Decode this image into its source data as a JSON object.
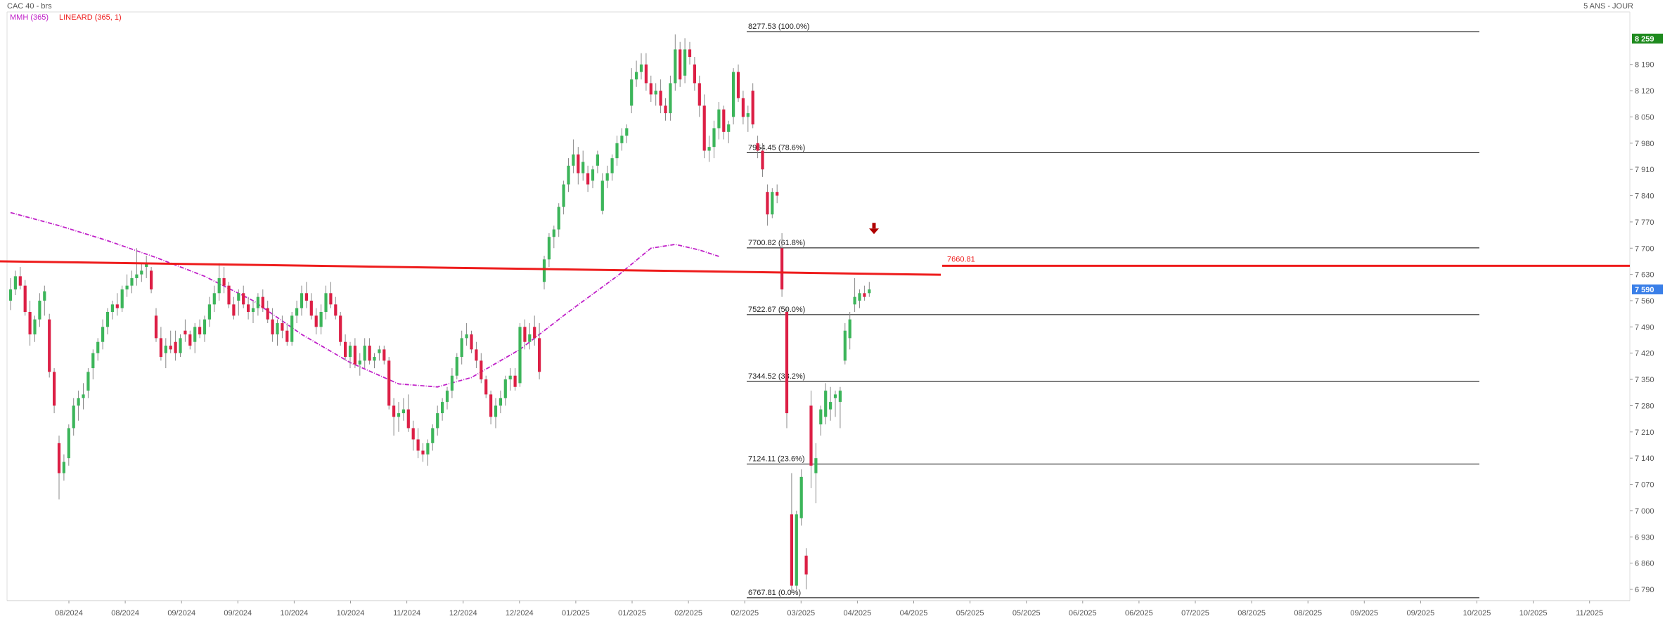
{
  "header": {
    "instrument": "CAC 40 - brs",
    "indicator_mmh": "MMH (365)",
    "indicator_lineard": "LINEARD (365, 1)",
    "period": "5 ANS - JOUR"
  },
  "colors": {
    "up": "#3cb55a",
    "down": "#dc1f45",
    "mmh": "#c020c8",
    "trend": "#ee1c1c",
    "fib": "#000000",
    "last_badge": "#3a7fe8",
    "high_badge": "#1e8a1e",
    "arrow": "#b00000"
  },
  "chart_data": {
    "type": "candlestick",
    "y_axis": {
      "min": 6760,
      "max": 8330,
      "ticks": [
        8190,
        8120,
        8050,
        7980,
        7910,
        7840,
        7770,
        7700,
        7630,
        7560,
        7490,
        7420,
        7350,
        7280,
        7210,
        7140,
        7070,
        7000,
        6930,
        6860,
        6790
      ]
    },
    "x_axis": {
      "labels": [
        "08/2024",
        "08/2024",
        "09/2024",
        "09/2024",
        "10/2024",
        "10/2024",
        "11/2024",
        "12/2024",
        "12/2024",
        "01/2025",
        "01/2025",
        "02/2025",
        "02/2025",
        "03/2025",
        "04/2025",
        "04/2025",
        "05/2025",
        "05/2025",
        "06/2025",
        "06/2025",
        "07/2025",
        "08/2025",
        "08/2025",
        "09/2025",
        "09/2025",
        "10/2025",
        "10/2025",
        "11/2025"
      ]
    },
    "last_price": {
      "label": "7 590",
      "value": 7590
    },
    "high_marker": {
      "label": "8 259",
      "value": 8259
    },
    "fibonacci": [
      {
        "value": 8277.53,
        "label": "8277.53",
        "pct": "(100.0%)"
      },
      {
        "value": 7954.45,
        "label": "7954.45",
        "pct": "(78.6%)"
      },
      {
        "value": 7700.82,
        "label": "7700.82",
        "pct": "(61.8%)"
      },
      {
        "value": 7522.67,
        "label": "7522.67",
        "pct": "(50.0%)"
      },
      {
        "value": 7344.52,
        "label": "7344.52",
        "pct": "(38.2%)"
      },
      {
        "value": 7124.11,
        "label": "7124.11",
        "pct": "(23.6%)"
      },
      {
        "value": 6767.81,
        "label": "6767.81",
        "pct": "(0.0%)"
      }
    ],
    "trendline": {
      "name": "LINEARD (365, 1)",
      "start": 7665,
      "end": 7629,
      "value_label": "7660.81"
    },
    "mmh_curve": [
      [
        0,
        7795
      ],
      [
        10,
        7760
      ],
      [
        20,
        7720
      ],
      [
        30,
        7675
      ],
      [
        40,
        7625
      ],
      [
        50,
        7560
      ],
      [
        60,
        7470
      ],
      [
        70,
        7395
      ],
      [
        80,
        7338
      ],
      [
        88,
        7330
      ],
      [
        95,
        7355
      ],
      [
        105,
        7430
      ],
      [
        115,
        7530
      ],
      [
        125,
        7625
      ],
      [
        132,
        7700
      ],
      [
        137,
        7710
      ],
      [
        142,
        7695
      ],
      [
        146,
        7678
      ]
    ],
    "candles": [
      {
        "o": 7560,
        "h": 7620,
        "l": 7535,
        "c": 7590
      },
      {
        "o": 7590,
        "h": 7640,
        "l": 7575,
        "c": 7625
      },
      {
        "o": 7625,
        "h": 7650,
        "l": 7590,
        "c": 7600
      },
      {
        "o": 7600,
        "h": 7615,
        "l": 7520,
        "c": 7530
      },
      {
        "o": 7530,
        "h": 7560,
        "l": 7440,
        "c": 7470
      },
      {
        "o": 7470,
        "h": 7520,
        "l": 7450,
        "c": 7510
      },
      {
        "o": 7510,
        "h": 7580,
        "l": 7490,
        "c": 7560
      },
      {
        "o": 7560,
        "h": 7600,
        "l": 7520,
        "c": 7585
      },
      {
        "o": 7510,
        "h": 7525,
        "l": 7355,
        "c": 7370
      },
      {
        "o": 7370,
        "h": 7380,
        "l": 7260,
        "c": 7280
      },
      {
        "o": 7180,
        "h": 7200,
        "l": 7030,
        "c": 7100
      },
      {
        "o": 7100,
        "h": 7150,
        "l": 7080,
        "c": 7130
      },
      {
        "o": 7140,
        "h": 7230,
        "l": 7120,
        "c": 7220
      },
      {
        "o": 7220,
        "h": 7300,
        "l": 7200,
        "c": 7280
      },
      {
        "o": 7280,
        "h": 7320,
        "l": 7240,
        "c": 7300
      },
      {
        "o": 7300,
        "h": 7340,
        "l": 7270,
        "c": 7310
      },
      {
        "o": 7320,
        "h": 7380,
        "l": 7300,
        "c": 7370
      },
      {
        "o": 7380,
        "h": 7430,
        "l": 7350,
        "c": 7420
      },
      {
        "o": 7420,
        "h": 7460,
        "l": 7400,
        "c": 7450
      },
      {
        "o": 7450,
        "h": 7510,
        "l": 7430,
        "c": 7490
      },
      {
        "o": 7490,
        "h": 7540,
        "l": 7470,
        "c": 7530
      },
      {
        "o": 7530,
        "h": 7560,
        "l": 7510,
        "c": 7550
      },
      {
        "o": 7550,
        "h": 7580,
        "l": 7520,
        "c": 7540
      },
      {
        "o": 7540,
        "h": 7600,
        "l": 7530,
        "c": 7590
      },
      {
        "o": 7590,
        "h": 7630,
        "l": 7570,
        "c": 7600
      },
      {
        "o": 7600,
        "h": 7640,
        "l": 7580,
        "c": 7620
      },
      {
        "o": 7620,
        "h": 7700,
        "l": 7600,
        "c": 7630
      },
      {
        "o": 7630,
        "h": 7660,
        "l": 7610,
        "c": 7640
      },
      {
        "o": 7650,
        "h": 7680,
        "l": 7620,
        "c": 7660
      },
      {
        "o": 7640,
        "h": 7650,
        "l": 7580,
        "c": 7590
      },
      {
        "o": 7520,
        "h": 7540,
        "l": 7450,
        "c": 7460
      },
      {
        "o": 7460,
        "h": 7490,
        "l": 7400,
        "c": 7410
      },
      {
        "o": 7420,
        "h": 7460,
        "l": 7380,
        "c": 7440
      },
      {
        "o": 7440,
        "h": 7480,
        "l": 7420,
        "c": 7430
      },
      {
        "o": 7450,
        "h": 7480,
        "l": 7400,
        "c": 7420
      },
      {
        "o": 7420,
        "h": 7470,
        "l": 7410,
        "c": 7460
      },
      {
        "o": 7480,
        "h": 7510,
        "l": 7450,
        "c": 7470
      },
      {
        "o": 7470,
        "h": 7480,
        "l": 7430,
        "c": 7440
      },
      {
        "o": 7450,
        "h": 7500,
        "l": 7420,
        "c": 7490
      },
      {
        "o": 7490,
        "h": 7510,
        "l": 7460,
        "c": 7470
      },
      {
        "o": 7470,
        "h": 7520,
        "l": 7450,
        "c": 7510
      },
      {
        "o": 7510,
        "h": 7570,
        "l": 7490,
        "c": 7550
      },
      {
        "o": 7550,
        "h": 7600,
        "l": 7530,
        "c": 7580
      },
      {
        "o": 7580,
        "h": 7660,
        "l": 7560,
        "c": 7620
      },
      {
        "o": 7620,
        "h": 7650,
        "l": 7580,
        "c": 7600
      },
      {
        "o": 7600,
        "h": 7610,
        "l": 7540,
        "c": 7550
      },
      {
        "o": 7550,
        "h": 7570,
        "l": 7510,
        "c": 7520
      },
      {
        "o": 7560,
        "h": 7590,
        "l": 7520,
        "c": 7580
      },
      {
        "o": 7580,
        "h": 7600,
        "l": 7540,
        "c": 7550
      },
      {
        "o": 7550,
        "h": 7570,
        "l": 7510,
        "c": 7530
      },
      {
        "o": 7530,
        "h": 7560,
        "l": 7500,
        "c": 7540
      },
      {
        "o": 7540,
        "h": 7580,
        "l": 7520,
        "c": 7570
      },
      {
        "o": 7570,
        "h": 7590,
        "l": 7530,
        "c": 7540
      },
      {
        "o": 7540,
        "h": 7560,
        "l": 7500,
        "c": 7510
      },
      {
        "o": 7510,
        "h": 7540,
        "l": 7450,
        "c": 7470
      },
      {
        "o": 7470,
        "h": 7510,
        "l": 7440,
        "c": 7500
      },
      {
        "o": 7500,
        "h": 7520,
        "l": 7460,
        "c": 7480
      },
      {
        "o": 7480,
        "h": 7500,
        "l": 7440,
        "c": 7450
      },
      {
        "o": 7450,
        "h": 7530,
        "l": 7440,
        "c": 7520
      },
      {
        "o": 7520,
        "h": 7560,
        "l": 7500,
        "c": 7540
      },
      {
        "o": 7540,
        "h": 7600,
        "l": 7520,
        "c": 7580
      },
      {
        "o": 7580,
        "h": 7610,
        "l": 7540,
        "c": 7560
      },
      {
        "o": 7560,
        "h": 7580,
        "l": 7510,
        "c": 7520
      },
      {
        "o": 7520,
        "h": 7540,
        "l": 7470,
        "c": 7490
      },
      {
        "o": 7490,
        "h": 7550,
        "l": 7470,
        "c": 7530
      },
      {
        "o": 7530,
        "h": 7600,
        "l": 7510,
        "c": 7580
      },
      {
        "o": 7580,
        "h": 7610,
        "l": 7540,
        "c": 7550
      },
      {
        "o": 7550,
        "h": 7570,
        "l": 7510,
        "c": 7520
      },
      {
        "o": 7520,
        "h": 7530,
        "l": 7440,
        "c": 7450
      },
      {
        "o": 7450,
        "h": 7470,
        "l": 7400,
        "c": 7410
      },
      {
        "o": 7410,
        "h": 7450,
        "l": 7380,
        "c": 7440
      },
      {
        "o": 7440,
        "h": 7460,
        "l": 7380,
        "c": 7390
      },
      {
        "o": 7390,
        "h": 7420,
        "l": 7360,
        "c": 7400
      },
      {
        "o": 7400,
        "h": 7460,
        "l": 7380,
        "c": 7440
      },
      {
        "o": 7440,
        "h": 7460,
        "l": 7390,
        "c": 7400
      },
      {
        "o": 7400,
        "h": 7420,
        "l": 7380,
        "c": 7410
      },
      {
        "o": 7420,
        "h": 7440,
        "l": 7400,
        "c": 7430
      },
      {
        "o": 7430,
        "h": 7440,
        "l": 7390,
        "c": 7400
      },
      {
        "o": 7400,
        "h": 7410,
        "l": 7270,
        "c": 7280
      },
      {
        "o": 7280,
        "h": 7300,
        "l": 7200,
        "c": 7250
      },
      {
        "o": 7250,
        "h": 7290,
        "l": 7210,
        "c": 7260
      },
      {
        "o": 7260,
        "h": 7300,
        "l": 7240,
        "c": 7270
      },
      {
        "o": 7270,
        "h": 7310,
        "l": 7210,
        "c": 7220
      },
      {
        "o": 7220,
        "h": 7240,
        "l": 7160,
        "c": 7190
      },
      {
        "o": 7190,
        "h": 7220,
        "l": 7140,
        "c": 7160
      },
      {
        "o": 7160,
        "h": 7180,
        "l": 7130,
        "c": 7150
      },
      {
        "o": 7150,
        "h": 7190,
        "l": 7120,
        "c": 7180
      },
      {
        "o": 7180,
        "h": 7230,
        "l": 7160,
        "c": 7220
      },
      {
        "o": 7220,
        "h": 7280,
        "l": 7200,
        "c": 7260
      },
      {
        "o": 7260,
        "h": 7300,
        "l": 7240,
        "c": 7290
      },
      {
        "o": 7290,
        "h": 7330,
        "l": 7270,
        "c": 7320
      },
      {
        "o": 7320,
        "h": 7380,
        "l": 7300,
        "c": 7360
      },
      {
        "o": 7360,
        "h": 7420,
        "l": 7350,
        "c": 7410
      },
      {
        "o": 7410,
        "h": 7480,
        "l": 7390,
        "c": 7460
      },
      {
        "o": 7460,
        "h": 7500,
        "l": 7440,
        "c": 7470
      },
      {
        "o": 7470,
        "h": 7480,
        "l": 7420,
        "c": 7430
      },
      {
        "o": 7430,
        "h": 7450,
        "l": 7380,
        "c": 7400
      },
      {
        "o": 7400,
        "h": 7420,
        "l": 7340,
        "c": 7350
      },
      {
        "o": 7350,
        "h": 7360,
        "l": 7300,
        "c": 7310
      },
      {
        "o": 7310,
        "h": 7320,
        "l": 7230,
        "c": 7250
      },
      {
        "o": 7250,
        "h": 7300,
        "l": 7220,
        "c": 7280
      },
      {
        "o": 7280,
        "h": 7320,
        "l": 7260,
        "c": 7300
      },
      {
        "o": 7300,
        "h": 7360,
        "l": 7280,
        "c": 7350
      },
      {
        "o": 7350,
        "h": 7380,
        "l": 7320,
        "c": 7360
      },
      {
        "o": 7360,
        "h": 7380,
        "l": 7320,
        "c": 7330
      },
      {
        "o": 7340,
        "h": 7500,
        "l": 7330,
        "c": 7490
      },
      {
        "o": 7490,
        "h": 7510,
        "l": 7430,
        "c": 7450
      },
      {
        "o": 7450,
        "h": 7500,
        "l": 7430,
        "c": 7470
      },
      {
        "o": 7490,
        "h": 7520,
        "l": 7440,
        "c": 7460
      },
      {
        "o": 7460,
        "h": 7500,
        "l": 7350,
        "c": 7370
      },
      {
        "o": 7610,
        "h": 7680,
        "l": 7590,
        "c": 7670
      },
      {
        "o": 7670,
        "h": 7740,
        "l": 7650,
        "c": 7730
      },
      {
        "o": 7730,
        "h": 7760,
        "l": 7700,
        "c": 7750
      },
      {
        "o": 7750,
        "h": 7820,
        "l": 7730,
        "c": 7810
      },
      {
        "o": 7810,
        "h": 7880,
        "l": 7790,
        "c": 7870
      },
      {
        "o": 7870,
        "h": 7940,
        "l": 7850,
        "c": 7920
      },
      {
        "o": 7920,
        "h": 7990,
        "l": 7900,
        "c": 7950
      },
      {
        "o": 7950,
        "h": 7970,
        "l": 7870,
        "c": 7900
      },
      {
        "o": 7900,
        "h": 7960,
        "l": 7880,
        "c": 7930
      },
      {
        "o": 7900,
        "h": 7920,
        "l": 7850,
        "c": 7870
      },
      {
        "o": 7880,
        "h": 7920,
        "l": 7860,
        "c": 7910
      },
      {
        "o": 7920,
        "h": 7960,
        "l": 7900,
        "c": 7950
      },
      {
        "o": 7800,
        "h": 7900,
        "l": 7790,
        "c": 7880
      },
      {
        "o": 7880,
        "h": 7920,
        "l": 7860,
        "c": 7900
      },
      {
        "o": 7900,
        "h": 7950,
        "l": 7880,
        "c": 7940
      },
      {
        "o": 7940,
        "h": 8000,
        "l": 7920,
        "c": 7980
      },
      {
        "o": 7980,
        "h": 8020,
        "l": 7960,
        "c": 8000
      },
      {
        "o": 8000,
        "h": 8030,
        "l": 7980,
        "c": 8020
      },
      {
        "o": 8080,
        "h": 8180,
        "l": 8060,
        "c": 8150
      },
      {
        "o": 8150,
        "h": 8200,
        "l": 8130,
        "c": 8170
      },
      {
        "o": 8170,
        "h": 8220,
        "l": 8150,
        "c": 8190
      },
      {
        "o": 8190,
        "h": 8220,
        "l": 8120,
        "c": 8140
      },
      {
        "o": 8140,
        "h": 8160,
        "l": 8090,
        "c": 8110
      },
      {
        "o": 8110,
        "h": 8140,
        "l": 8080,
        "c": 8120
      },
      {
        "o": 8120,
        "h": 8150,
        "l": 8060,
        "c": 8080
      },
      {
        "o": 8080,
        "h": 8100,
        "l": 8040,
        "c": 8060
      },
      {
        "o": 8060,
        "h": 8160,
        "l": 8040,
        "c": 8140
      },
      {
        "o": 8140,
        "h": 8270,
        "l": 8120,
        "c": 8230
      },
      {
        "o": 8230,
        "h": 8250,
        "l": 8130,
        "c": 8150
      },
      {
        "o": 8160,
        "h": 8260,
        "l": 8140,
        "c": 8230
      },
      {
        "o": 8230,
        "h": 8250,
        "l": 8190,
        "c": 8210
      },
      {
        "o": 8190,
        "h": 8210,
        "l": 8120,
        "c": 8140
      },
      {
        "o": 8140,
        "h": 8160,
        "l": 8050,
        "c": 8080
      },
      {
        "o": 8080,
        "h": 8110,
        "l": 7940,
        "c": 7960
      },
      {
        "o": 7960,
        "h": 8000,
        "l": 7930,
        "c": 7970
      },
      {
        "o": 7970,
        "h": 8040,
        "l": 7940,
        "c": 8020
      },
      {
        "o": 8020,
        "h": 8090,
        "l": 7990,
        "c": 8070
      },
      {
        "o": 8070,
        "h": 8080,
        "l": 7990,
        "c": 8010
      },
      {
        "o": 8010,
        "h": 8040,
        "l": 7980,
        "c": 8030
      },
      {
        "o": 8050,
        "h": 8180,
        "l": 8030,
        "c": 8170
      },
      {
        "o": 8170,
        "h": 8190,
        "l": 8090,
        "c": 8100
      },
      {
        "o": 8100,
        "h": 8120,
        "l": 8030,
        "c": 8050
      },
      {
        "o": 8050,
        "h": 8080,
        "l": 8010,
        "c": 8060
      },
      {
        "o": 8120,
        "h": 8140,
        "l": 8020,
        "c": 8030
      },
      {
        "o": 7980,
        "h": 8000,
        "l": 7940,
        "c": 7960
      },
      {
        "o": 7960,
        "h": 7980,
        "l": 7890,
        "c": 7910
      },
      {
        "o": 7850,
        "h": 7870,
        "l": 7760,
        "c": 7790
      },
      {
        "o": 7790,
        "h": 7860,
        "l": 7780,
        "c": 7850
      },
      {
        "o": 7850,
        "h": 7870,
        "l": 7820,
        "c": 7840
      },
      {
        "o": 7700,
        "h": 7740,
        "l": 7570,
        "c": 7590
      },
      {
        "o": 7530,
        "h": 7540,
        "l": 7220,
        "c": 7260
      },
      {
        "o": 6990,
        "h": 7100,
        "l": 6780,
        "c": 6800
      },
      {
        "o": 6800,
        "h": 7000,
        "l": 6790,
        "c": 6990
      },
      {
        "o": 6980,
        "h": 7110,
        "l": 6960,
        "c": 7090
      },
      {
        "o": 6880,
        "h": 6900,
        "l": 6790,
        "c": 6830
      },
      {
        "o": 7280,
        "h": 7320,
        "l": 7060,
        "c": 7120
      },
      {
        "o": 7100,
        "h": 7180,
        "l": 7020,
        "c": 7140
      },
      {
        "o": 7230,
        "h": 7280,
        "l": 7200,
        "c": 7270
      },
      {
        "o": 7250,
        "h": 7340,
        "l": 7230,
        "c": 7320
      },
      {
        "o": 7270,
        "h": 7330,
        "l": 7240,
        "c": 7290
      },
      {
        "o": 7300,
        "h": 7320,
        "l": 7250,
        "c": 7310
      },
      {
        "o": 7290,
        "h": 7330,
        "l": 7220,
        "c": 7320
      },
      {
        "o": 7400,
        "h": 7500,
        "l": 7390,
        "c": 7480
      },
      {
        "o": 7460,
        "h": 7530,
        "l": 7430,
        "c": 7510
      },
      {
        "o": 7550,
        "h": 7620,
        "l": 7530,
        "c": 7570
      },
      {
        "o": 7560,
        "h": 7590,
        "l": 7540,
        "c": 7580
      },
      {
        "o": 7580,
        "h": 7600,
        "l": 7560,
        "c": 7570
      },
      {
        "o": 7580,
        "h": 7610,
        "l": 7570,
        "c": 7590
      }
    ]
  }
}
